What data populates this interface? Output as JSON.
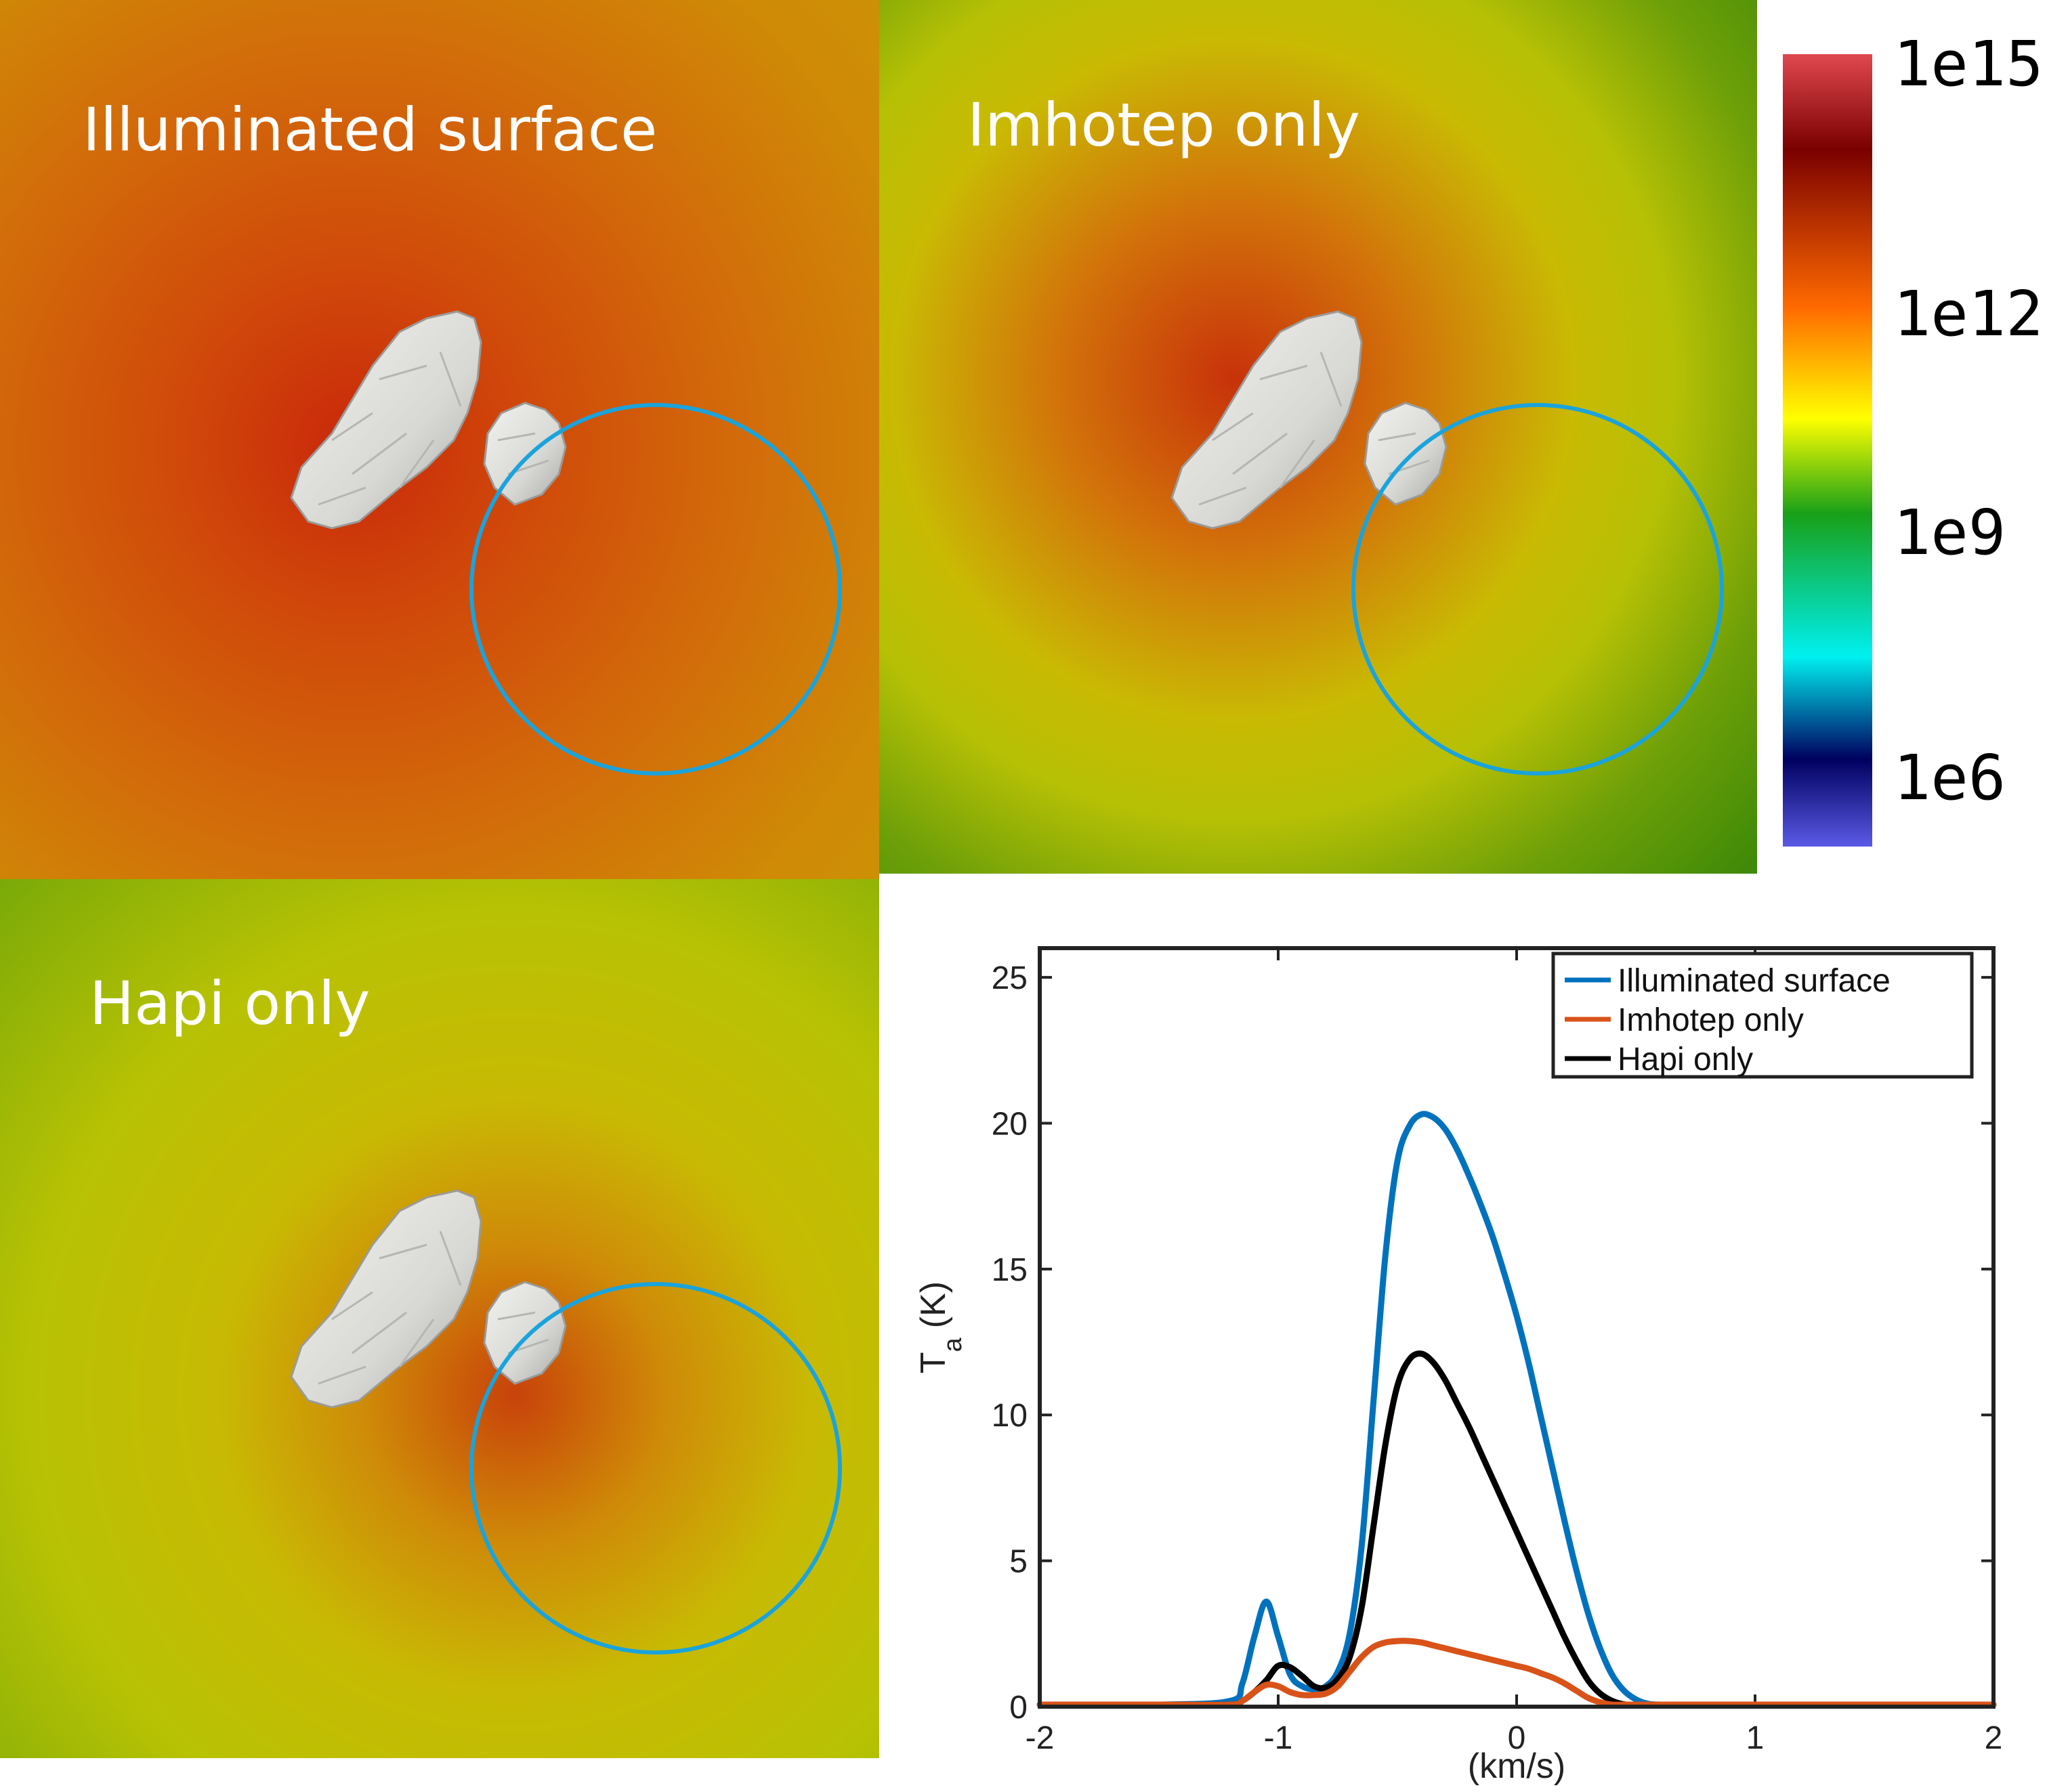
{
  "panels": [
    {
      "label": "Illuminated surface"
    },
    {
      "label": "Imhotep only"
    },
    {
      "label": "Hapi only"
    }
  ],
  "colorbar": {
    "labels": [
      "1e15",
      "1e12",
      "1e9",
      "1e6"
    ],
    "colors": [
      "#e0484f",
      "#7a0000",
      "#ff6a00",
      "#ffff00",
      "#18a018",
      "#00f0f0",
      "#000060",
      "#5a5ae6"
    ]
  },
  "colors": {
    "illuminated": "#0072BD",
    "imhotep": "#D95319",
    "hapi": "#000000",
    "aperture": "#1aa3dc"
  },
  "chart_data": {
    "type": "line",
    "title": "",
    "xlabel": "(km/s)",
    "ylabel": "T_a (K)",
    "ylabel_main": "T",
    "ylabel_sub": "a",
    "ylabel_unit": "(K)",
    "xlim": [
      -2,
      2
    ],
    "ylim": [
      0,
      26
    ],
    "xticks": [
      -2,
      -1,
      0,
      1,
      2
    ],
    "yticks": [
      0,
      5,
      10,
      15,
      20,
      25
    ],
    "legend_position": "top-right",
    "x": [
      -2.0,
      -1.5,
      -1.2,
      -1.15,
      -1.1,
      -1.05,
      -1.0,
      -0.95,
      -0.9,
      -0.85,
      -0.8,
      -0.75,
      -0.7,
      -0.65,
      -0.6,
      -0.55,
      -0.5,
      -0.45,
      -0.4,
      -0.35,
      -0.3,
      -0.25,
      -0.2,
      -0.15,
      -0.1,
      -0.05,
      0.0,
      0.05,
      0.1,
      0.15,
      0.2,
      0.25,
      0.3,
      0.35,
      0.4,
      0.45,
      0.5,
      0.55,
      0.6,
      0.7,
      0.8,
      1.0,
      1.5,
      2.0
    ],
    "series": [
      {
        "name": "Illuminated surface",
        "color": "#0072BD",
        "values": [
          0.0,
          0.0,
          0.2,
          0.8,
          2.4,
          3.6,
          2.4,
          1.1,
          0.7,
          0.6,
          0.7,
          1.2,
          2.5,
          5.5,
          10.5,
          15.5,
          18.7,
          19.9,
          20.3,
          20.2,
          19.8,
          19.1,
          18.2,
          17.2,
          16.1,
          14.8,
          13.4,
          11.8,
          10.0,
          8.2,
          6.4,
          4.7,
          3.2,
          2.0,
          1.1,
          0.55,
          0.25,
          0.1,
          0.05,
          0.0,
          0.0,
          0.0,
          0.0,
          0.0
        ]
      },
      {
        "name": "Imhotep only",
        "color": "#D95319",
        "values": [
          0.0,
          0.0,
          0.05,
          0.2,
          0.5,
          0.75,
          0.7,
          0.5,
          0.4,
          0.4,
          0.45,
          0.7,
          1.2,
          1.7,
          2.05,
          2.2,
          2.25,
          2.25,
          2.2,
          2.1,
          2.0,
          1.9,
          1.8,
          1.7,
          1.6,
          1.5,
          1.4,
          1.3,
          1.15,
          1.0,
          0.8,
          0.55,
          0.3,
          0.15,
          0.05,
          0.0,
          0.0,
          0.0,
          0.0,
          0.0,
          0.0,
          0.0,
          0.0,
          0.0
        ]
      },
      {
        "name": "Hapi only",
        "color": "#000000",
        "values": [
          0.0,
          0.0,
          0.05,
          0.2,
          0.5,
          0.9,
          1.4,
          1.35,
          1.05,
          0.7,
          0.65,
          0.95,
          1.7,
          3.4,
          6.2,
          9.0,
          11.0,
          11.9,
          12.1,
          11.8,
          11.2,
          10.4,
          9.6,
          8.7,
          7.8,
          6.9,
          6.0,
          5.1,
          4.2,
          3.3,
          2.4,
          1.6,
          0.9,
          0.45,
          0.2,
          0.08,
          0.02,
          0.0,
          0.0,
          0.0,
          0.0,
          0.0,
          0.0,
          0.0
        ]
      }
    ]
  }
}
